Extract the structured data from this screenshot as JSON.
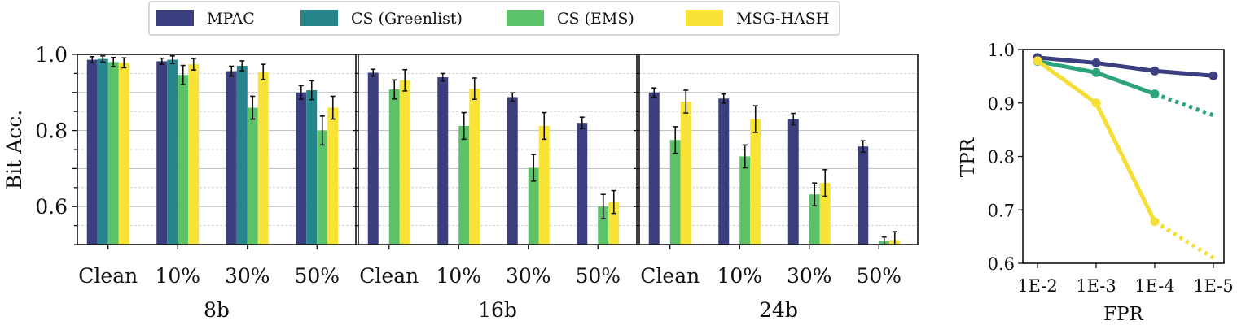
{
  "chart_data": [
    {
      "type": "bar",
      "title": "",
      "xlabel": "8b",
      "ylabel": "Bit Acc.",
      "ylim": [
        0.5,
        1.0
      ],
      "yticks": [
        "0.6",
        "0.8",
        "1.0"
      ],
      "grid": true,
      "categories": [
        "Clean",
        "10%",
        "30%",
        "50%"
      ],
      "series": [
        {
          "name": "MPAC",
          "values": [
            0.986,
            0.982,
            0.956,
            0.9
          ],
          "errors": [
            0.008,
            0.008,
            0.013,
            0.018
          ]
        },
        {
          "name": "CS (Greenlist)",
          "values": [
            0.988,
            0.986,
            0.97,
            0.906
          ],
          "errors": [
            0.008,
            0.01,
            0.013,
            0.025
          ]
        },
        {
          "name": "CS (EMS)",
          "values": [
            0.98,
            0.946,
            0.86,
            0.8
          ],
          "errors": [
            0.012,
            0.025,
            0.03,
            0.038
          ]
        },
        {
          "name": "MSG-HASH",
          "values": [
            0.978,
            0.974,
            0.954,
            0.86
          ],
          "errors": [
            0.013,
            0.015,
            0.02,
            0.03
          ]
        }
      ]
    },
    {
      "type": "bar",
      "title": "",
      "xlabel": "16b",
      "ylabel": "",
      "ylim": [
        0.5,
        1.0
      ],
      "grid": true,
      "categories": [
        "Clean",
        "10%",
        "30%",
        "50%"
      ],
      "series": [
        {
          "name": "MPAC",
          "values": [
            0.952,
            0.94,
            0.888,
            0.82
          ],
          "errors": [
            0.009,
            0.01,
            0.011,
            0.015
          ]
        },
        {
          "name": "CS (Greenlist)",
          "values": [
            null,
            null,
            null,
            null
          ],
          "errors": [
            0,
            0,
            0,
            0
          ]
        },
        {
          "name": "CS (EMS)",
          "values": [
            0.908,
            0.812,
            0.702,
            0.6
          ],
          "errors": [
            0.025,
            0.035,
            0.035,
            0.032
          ]
        },
        {
          "name": "MSG-HASH",
          "values": [
            0.932,
            0.91,
            0.812,
            0.612
          ],
          "errors": [
            0.028,
            0.028,
            0.035,
            0.03
          ]
        }
      ]
    },
    {
      "type": "bar",
      "title": "",
      "xlabel": "24b",
      "ylabel": "",
      "ylim": [
        0.5,
        1.0
      ],
      "grid": true,
      "categories": [
        "Clean",
        "10%",
        "30%",
        "50%"
      ],
      "series": [
        {
          "name": "MPAC",
          "values": [
            0.9,
            0.884,
            0.83,
            0.758
          ],
          "errors": [
            0.012,
            0.012,
            0.015,
            0.015
          ]
        },
        {
          "name": "CS (Greenlist)",
          "values": [
            null,
            null,
            null,
            null
          ],
          "errors": [
            0,
            0,
            0,
            0
          ]
        },
        {
          "name": "CS (EMS)",
          "values": [
            0.775,
            0.732,
            0.632,
            0.51
          ],
          "errors": [
            0.035,
            0.03,
            0.03,
            0.01
          ]
        },
        {
          "name": "MSG-HASH",
          "values": [
            0.876,
            0.83,
            0.662,
            0.512
          ],
          "errors": [
            0.03,
            0.035,
            0.035,
            0.022
          ]
        }
      ]
    },
    {
      "type": "line",
      "title": "",
      "xlabel": "FPR",
      "ylabel": "TPR",
      "categories": [
        "1E-2",
        "1E-3",
        "1E-4",
        "1E-5"
      ],
      "ylim": [
        0.6,
        1.0
      ],
      "yticks": [
        "0.6",
        "0.7",
        "0.8",
        "0.9",
        "1.0"
      ],
      "grid": false,
      "series": [
        {
          "name": "MPAC",
          "values": [
            0.985,
            0.975,
            0.96,
            0.951
          ],
          "dotted_from": null
        },
        {
          "name": "CS (EMS)",
          "values": [
            0.978,
            0.957,
            0.917,
            0.877
          ],
          "dotted_from": 2
        },
        {
          "name": "MSG-HASH",
          "values": [
            0.979,
            0.9,
            0.678,
            0.61
          ],
          "dotted_from": 2
        }
      ]
    }
  ],
  "legend": {
    "placement": "top-center",
    "items": [
      {
        "label": "MPAC",
        "color": "#3b3f80"
      },
      {
        "label": "CS (Greenlist)",
        "color": "#26848b"
      },
      {
        "label": "CS (EMS)",
        "color": "#5cc269"
      },
      {
        "label": "MSG-HASH",
        "color": "#f8e336"
      }
    ]
  },
  "colors": {
    "MPAC": "#3b3f80",
    "CS (Greenlist)": "#26848b",
    "CS (EMS)": "#5cc269",
    "MSG-HASH": "#f8e336",
    "line_MPAC": "#3b3f80",
    "line_CS (EMS)": "#2ba37b",
    "line_MSG-HASH": "#f5df36"
  }
}
